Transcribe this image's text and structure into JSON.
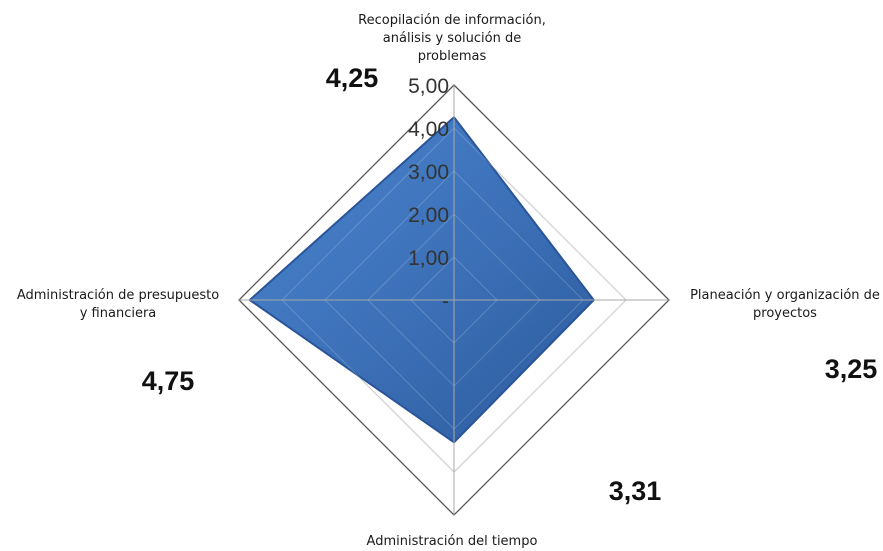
{
  "chart_data": {
    "type": "radar",
    "categories": [
      "Recopilación de información, análisis y solución de problemas",
      "Planeación y organización de proyectos",
      "Administración del tiempo",
      "Administración de presupuesto y financiera"
    ],
    "category_lines": [
      [
        "Recopilación de información,",
        "análisis y solución de",
        "problemas"
      ],
      [
        "Planeación y organización de",
        "proyectos"
      ],
      [
        "Administración del tiempo"
      ],
      [
        "Administración de presupuesto",
        "y financiera"
      ]
    ],
    "values": [
      4.25,
      3.25,
      3.31,
      4.75
    ],
    "value_labels": [
      "4,25",
      "3,25",
      "3,31",
      "4,75"
    ],
    "rlim": [
      0,
      5
    ],
    "ticks": [
      0,
      1,
      2,
      3,
      4,
      5
    ],
    "tick_labels": [
      "-",
      "1,00",
      "2,00",
      "3,00",
      "4,00",
      "5,00"
    ],
    "series_color": "#3b6fb6",
    "series_edge_color": "#2a5499",
    "grid_color": "#bfbfbf",
    "outer_grid_color": "#555555",
    "grid": true,
    "legend": false
  }
}
